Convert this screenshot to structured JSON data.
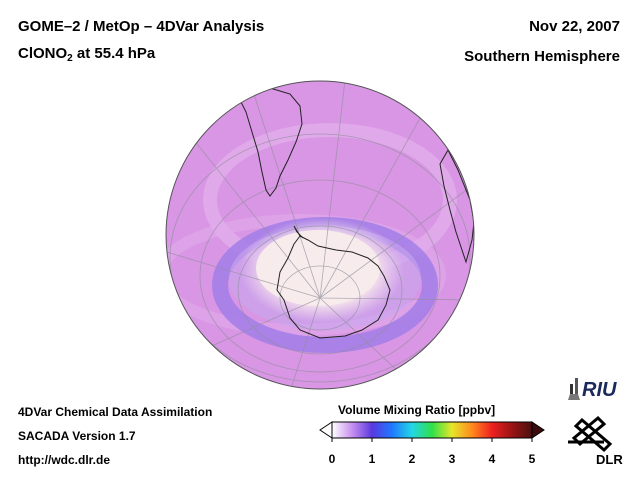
{
  "header": {
    "title_line1": "GOME–2 / MetOp – 4DVar Analysis",
    "title_species_main": "ClONO",
    "title_species_sub": "2",
    "title_species_rest": " at 55.4 hPa",
    "date": "Nov 22, 2007",
    "hemisphere": "Southern Hemisphere"
  },
  "footer": {
    "line1": "4DVar Chemical Data Assimilation",
    "line2": "SACADA Version 1.7",
    "line3": "http://wdc.dlr.de"
  },
  "colorbar": {
    "title": "Volume Mixing Ratio [ppbv]",
    "ticks": [
      "0",
      "1",
      "2",
      "3",
      "4",
      "5"
    ],
    "range": [
      0,
      5
    ],
    "colors": [
      "#ffffff",
      "#c890ee",
      "#5a38e0",
      "#1f78ff",
      "#23d6e6",
      "#2ee04a",
      "#e6e62a",
      "#ff8a1e",
      "#ee2020",
      "#9a1414",
      "#4a1010"
    ]
  },
  "logos": {
    "riu": "RIU",
    "dlr": "DLR"
  },
  "map": {
    "projection": "orthographic, south pole centered",
    "background_color": "#d99ae6",
    "ozone_hole_color": "#f5e8ea",
    "ring_color": "#9a78e8"
  }
}
